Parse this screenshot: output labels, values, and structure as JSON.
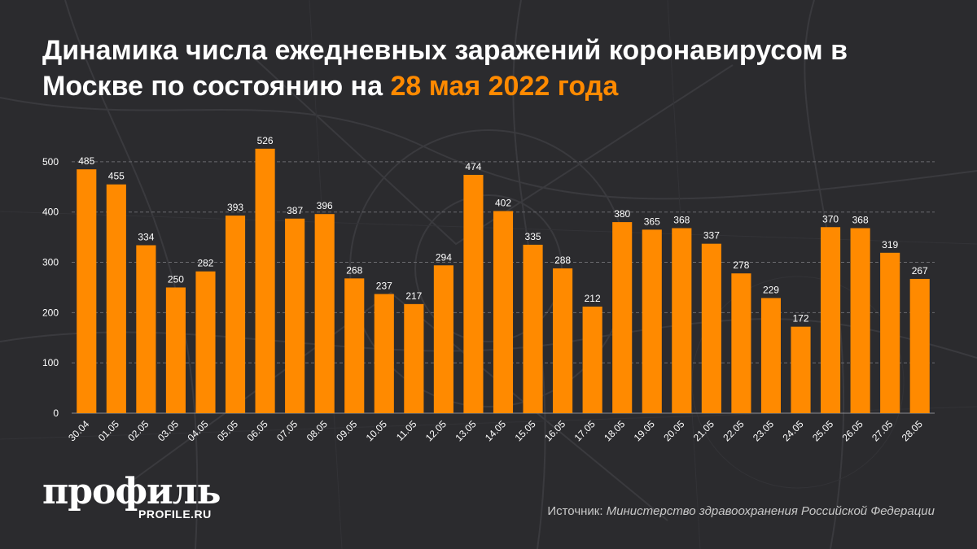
{
  "header": {
    "title_main": "Динамика числа ежедневных заражений коронавирусом в Москве по состоянию на",
    "title_accent": "28 мая 2022 года"
  },
  "chart_data": {
    "type": "bar",
    "categories": [
      "30.04",
      "01.05",
      "02.05",
      "03.05",
      "04.05",
      "05.05",
      "06.05",
      "07.05",
      "08.05",
      "09.05",
      "10.05",
      "11.05",
      "12.05",
      "13.05",
      "14.05",
      "15.05",
      "16.05",
      "17.05",
      "18.05",
      "19.05",
      "20.05",
      "21.05",
      "22.05",
      "23.05",
      "24.05",
      "25.05",
      "26.05",
      "27.05",
      "28.05"
    ],
    "values": [
      485,
      455,
      334,
      250,
      282,
      393,
      526,
      387,
      396,
      268,
      237,
      217,
      294,
      474,
      402,
      335,
      288,
      212,
      380,
      365,
      368,
      337,
      278,
      229,
      172,
      370,
      368,
      319,
      267
    ],
    "title": "Динамика числа ежедневных заражений коронавирусом в Москве по состоянию на 28 мая 2022 года",
    "xlabel": "",
    "ylabel": "",
    "ylim": [
      0,
      550
    ],
    "yticks": [
      0,
      100,
      200,
      300,
      400,
      500
    ],
    "grid": true,
    "bar_color": "#ff8a00"
  },
  "footer": {
    "logo_text": "профиль",
    "logo_site": "PROFILE.RU",
    "source_label": "Источник:",
    "source_name": "Министерство здравоохранения Российской Федерации"
  },
  "colors": {
    "background": "#2b2b2e",
    "accent": "#ff8a00",
    "text": "#ffffff",
    "grid": "#6a6a6e"
  }
}
